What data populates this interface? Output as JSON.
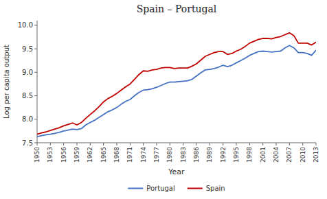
{
  "chart_data": {
    "type": "line",
    "title": "Spain – Portugal",
    "xlabel": "Year",
    "ylabel": "Log per capita output",
    "x": [
      1950,
      1951,
      1952,
      1953,
      1954,
      1955,
      1956,
      1957,
      1958,
      1959,
      1960,
      1961,
      1962,
      1963,
      1964,
      1965,
      1966,
      1967,
      1968,
      1969,
      1970,
      1971,
      1972,
      1973,
      1974,
      1975,
      1976,
      1977,
      1978,
      1979,
      1980,
      1981,
      1982,
      1983,
      1984,
      1985,
      1986,
      1987,
      1988,
      1989,
      1990,
      1991,
      1992,
      1993,
      1994,
      1995,
      1996,
      1997,
      1998,
      1999,
      2000,
      2001,
      2002,
      2003,
      2004,
      2005,
      2006,
      2007,
      2008,
      2009,
      2010,
      2011,
      2012,
      2013
    ],
    "series": [
      {
        "name": "Portugal",
        "color": "#4472C4",
        "values": [
          7.63,
          7.65,
          7.67,
          7.68,
          7.7,
          7.72,
          7.75,
          7.77,
          7.79,
          7.78,
          7.8,
          7.88,
          7.93,
          7.98,
          8.04,
          8.1,
          8.16,
          8.2,
          8.25,
          8.32,
          8.38,
          8.42,
          8.5,
          8.57,
          8.62,
          8.63,
          8.65,
          8.68,
          8.72,
          8.76,
          8.79,
          8.79,
          8.8,
          8.81,
          8.82,
          8.85,
          8.92,
          8.99,
          9.05,
          9.06,
          9.08,
          9.11,
          9.15,
          9.12,
          9.15,
          9.2,
          9.25,
          9.3,
          9.36,
          9.4,
          9.44,
          9.45,
          9.44,
          9.43,
          9.44,
          9.45,
          9.52,
          9.57,
          9.52,
          9.42,
          9.42,
          9.4,
          9.36,
          9.47
        ]
      },
      {
        "name": "Spain",
        "color": "#C00000",
        "values": [
          7.68,
          7.71,
          7.73,
          7.76,
          7.79,
          7.82,
          7.86,
          7.89,
          7.92,
          7.88,
          7.93,
          8.02,
          8.1,
          8.18,
          8.27,
          8.37,
          8.44,
          8.49,
          8.55,
          8.62,
          8.69,
          8.75,
          8.85,
          8.95,
          9.03,
          9.02,
          9.05,
          9.06,
          9.09,
          9.1,
          9.1,
          9.08,
          9.09,
          9.09,
          9.09,
          9.13,
          9.18,
          9.26,
          9.34,
          9.38,
          9.42,
          9.44,
          9.44,
          9.38,
          9.4,
          9.45,
          9.49,
          9.55,
          9.62,
          9.66,
          9.7,
          9.72,
          9.72,
          9.71,
          9.74,
          9.76,
          9.8,
          9.84,
          9.78,
          9.62,
          9.62,
          9.62,
          9.58,
          9.64
        ]
      }
    ],
    "xlim": [
      1950,
      2013
    ],
    "xticks": [
      1950,
      1953,
      1956,
      1959,
      1962,
      1965,
      1968,
      1971,
      1974,
      1977,
      1980,
      1983,
      1986,
      1989,
      1992,
      1995,
      1998,
      2001,
      2004,
      2007,
      2010,
      2013
    ],
    "ylim": [
      7.5,
      10.1
    ],
    "yticks": [
      7.5,
      {
        "value": 8.0,
        "label": "8.0"
      },
      8.5,
      {
        "value": 9.0,
        "label": "9.0"
      },
      9.5,
      {
        "value": 10.0,
        "label": "10.0"
      }
    ],
    "grid": false,
    "legend": "bottom"
  }
}
